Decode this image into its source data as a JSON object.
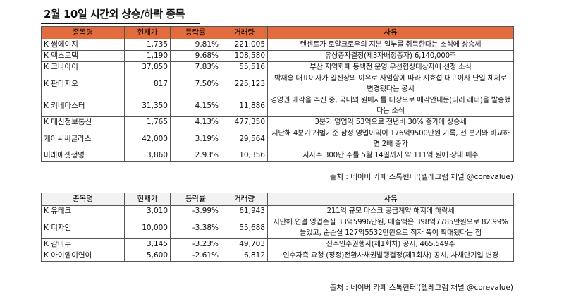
{
  "title": "2월 10일  시간외 상승/하락 종목",
  "headers": {
    "name": "종목명",
    "price": "현재가",
    "rate": "등락률",
    "volume": "거래량",
    "reason": "사유"
  },
  "up": [
    {
      "name": "K 썸에이지",
      "price": "1,735",
      "rate": "9.81%",
      "volume": "221,005",
      "reason": "텐센트가 로얄크로우의 지분 일부를 취득한다는 소식에 상승세"
    },
    {
      "name": "K 맥스로텍",
      "price": "1,190",
      "rate": "9.68%",
      "volume": "108,580",
      "reason": "유상증자결정(제3자배정증자) 6,140,000주"
    },
    {
      "name": "K 코나아이",
      "price": "37,850",
      "rate": "7.83%",
      "volume": "55,516",
      "reason": "부산 지역화폐 동백전 운영 우선협상대상자에 선정 소식"
    },
    {
      "name": "K 판타지오",
      "price": "817",
      "rate": "7.50%",
      "volume": "225,123",
      "reason": "박재홍 대표이사가 일신상의 이유로 사임함에 따라 지효섭 대표이사 단일 체제로 변경됐다는 공시"
    },
    {
      "name": "K 키네마스터",
      "price": "31,350",
      "rate": "4.15%",
      "volume": "11,886",
      "reason": "경영권 매각을 추진 중, 국내외 원매자를 대상으로 매각안내문(티러 레터)을 발송했다는 소식"
    },
    {
      "name": "K 대신정보통신",
      "price": "1,765",
      "rate": "4.13%",
      "volume": "477,350",
      "reason": "3분기 영업익 53억으로 전년비 30% 증가에 상승세"
    },
    {
      "name": "케이씨씨글라스",
      "price": "42,000",
      "rate": "3.19%",
      "volume": "29,564",
      "reason": "지난해 4분기 개별기준 잠정 영업이익이 176억9500만원 기록, 전 분기와 비교하면 2배 증가"
    },
    {
      "name": "미래에셋생명",
      "price": "3,860",
      "rate": "2.93%",
      "volume": "10,356",
      "reason": "자사주 300만 주를 5월 14일까지 약 111억 원에 장내 매수"
    }
  ],
  "down": [
    {
      "name": "K 유테크",
      "price": "3,010",
      "rate": "-3.99%",
      "volume": "61,943",
      "reason": "211억 규모 마스크 공급계약 해지에 하락세"
    },
    {
      "name": "K 디자인",
      "price": "10,000",
      "rate": "-3.38%",
      "volume": "55,688",
      "reason": "지난해 연결 영업손실 33억5996만원, 매출액은 398억7785만원으로 82.99% 늘었고, 순손실 127억5532만원으로 적자 폭이 확대됐다는 점"
    },
    {
      "name": "K 감마누",
      "price": "3,145",
      "rate": "-3.23%",
      "volume": "49,703",
      "reason": "신주인수권행사(제1회차) 공시, 465,549주"
    },
    {
      "name": "K 아이엠이연이",
      "price": "5,600",
      "rate": "-2.61%",
      "volume": "6,812",
      "reason": "인수자측 요청 (정정)전환사채권발행결정(제1회차) 공시, 사채만기일 변경"
    }
  ],
  "source": "출처 : 네이버 카페'스톡헌터'(텔레그램 채널 @corevalue)"
}
